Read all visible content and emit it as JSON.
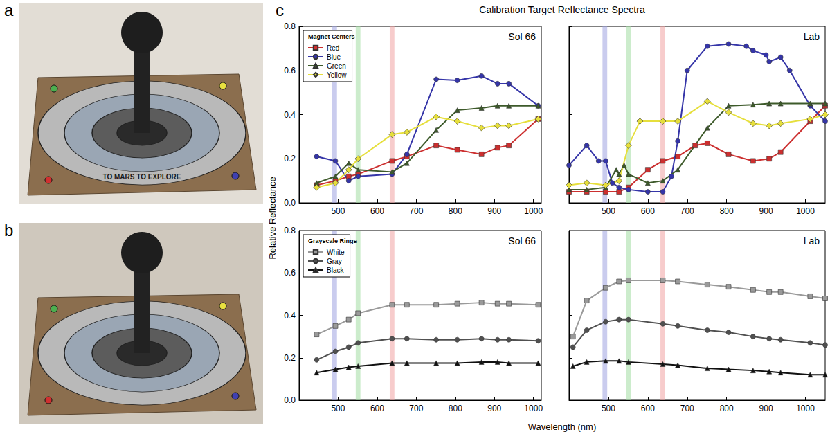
{
  "figure": {
    "panel_labels": [
      "a",
      "b",
      "c"
    ],
    "title": "Calibration Target Reflectance Spectra",
    "xlabel": "Wavelength (nm)",
    "ylabel": "Relative Reflectance",
    "photo_text": "TO MARS TO EXPLORE"
  },
  "chart_data": [
    {
      "type": "line",
      "title": "Sol 66",
      "legend_title": "Magnet Centers",
      "legend": "upper left",
      "grid": false,
      "xlim": [
        400,
        1020
      ],
      "xticks": [
        500,
        600,
        700,
        800,
        900,
        1000
      ],
      "ylim": [
        0,
        0.8
      ],
      "yticks": [
        {
          "value": 0,
          "label": "0.0"
        },
        0.2,
        0.4,
        0.6,
        0.8
      ],
      "bands": [
        {
          "from": 485,
          "to": 497,
          "color": "#9fa3e0"
        },
        {
          "from": 545,
          "to": 557,
          "color": "#a3dca3"
        },
        {
          "from": 632,
          "to": 644,
          "color": "#f0a3a3"
        }
      ],
      "x": [
        445,
        493,
        527,
        551,
        638,
        676,
        751,
        805,
        867,
        908,
        937,
        1012
      ],
      "series": [
        {
          "name": "Red",
          "color": "#cc2f2f",
          "marker": "square",
          "values": [
            0.08,
            0.1,
            0.12,
            0.13,
            0.19,
            0.21,
            0.26,
            0.24,
            0.22,
            0.25,
            0.26,
            0.38
          ]
        },
        {
          "name": "Blue",
          "color": "#3535a8",
          "marker": "circle",
          "values": [
            0.21,
            0.19,
            0.1,
            0.12,
            0.13,
            0.22,
            0.56,
            0.555,
            0.575,
            0.54,
            0.54,
            0.44
          ]
        },
        {
          "name": "Green",
          "color": "#3d5a2a",
          "marker": "triangle",
          "values": [
            0.09,
            0.12,
            0.18,
            0.15,
            0.14,
            0.18,
            0.33,
            0.42,
            0.43,
            0.44,
            0.44,
            0.44
          ]
        },
        {
          "name": "Yellow",
          "color": "#e6df3c",
          "marker": "diamond",
          "values": [
            0.07,
            0.09,
            0.15,
            0.2,
            0.31,
            0.32,
            0.39,
            0.37,
            0.34,
            0.35,
            0.35,
            0.38
          ]
        }
      ]
    },
    {
      "type": "line",
      "title": "Lab",
      "grid": false,
      "tick_labels": "x",
      "xlim": [
        400,
        1050
      ],
      "xticks": [
        500,
        600,
        700,
        800,
        900,
        1000
      ],
      "ylim": [
        0,
        0.8
      ],
      "yticks": [
        {
          "value": 0,
          "label": "0.0"
        },
        0.2,
        0.4,
        0.6,
        0.8
      ],
      "bands": [
        {
          "from": 485,
          "to": 497,
          "color": "#9fa3e0"
        },
        {
          "from": 545,
          "to": 557,
          "color": "#a3dca3"
        },
        {
          "from": 632,
          "to": 644,
          "color": "#f0a3a3"
        }
      ],
      "series": [
        {
          "name": "Red",
          "color": "#cc2f2f",
          "marker": "square",
          "x": [
            400,
            445,
            493,
            527,
            551,
            600,
            638,
            676,
            720,
            751,
            805,
            867,
            908,
            937,
            1012,
            1050
          ],
          "values": [
            0.05,
            0.05,
            0.05,
            0.05,
            0.07,
            0.15,
            0.19,
            0.21,
            0.26,
            0.27,
            0.22,
            0.19,
            0.2,
            0.23,
            0.37,
            0.44
          ]
        },
        {
          "name": "Blue",
          "color": "#3535a8",
          "marker": "circle",
          "x": [
            400,
            445,
            475,
            493,
            510,
            527,
            551,
            600,
            638,
            660,
            676,
            700,
            751,
            805,
            850,
            867,
            900,
            908,
            937,
            960,
            1012,
            1050
          ],
          "values": [
            0.17,
            0.26,
            0.19,
            0.19,
            0.09,
            0.07,
            0.06,
            0.05,
            0.05,
            0.12,
            0.28,
            0.6,
            0.71,
            0.72,
            0.71,
            0.69,
            0.67,
            0.64,
            0.66,
            0.6,
            0.44,
            0.37
          ]
        },
        {
          "name": "Green",
          "color": "#3d5a2a",
          "marker": "triangle",
          "x": [
            400,
            445,
            493,
            520,
            527,
            540,
            551,
            600,
            638,
            676,
            751,
            805,
            867,
            908,
            937,
            1012,
            1050
          ],
          "values": [
            0.06,
            0.06,
            0.07,
            0.15,
            0.13,
            0.17,
            0.13,
            0.09,
            0.1,
            0.15,
            0.34,
            0.44,
            0.445,
            0.45,
            0.45,
            0.45,
            0.45
          ]
        },
        {
          "name": "Yellow",
          "color": "#e6df3c",
          "marker": "diamond",
          "x": [
            400,
            445,
            493,
            527,
            551,
            580,
            638,
            676,
            751,
            805,
            867,
            908,
            937,
            1012,
            1050
          ],
          "values": [
            0.08,
            0.09,
            0.08,
            0.1,
            0.26,
            0.37,
            0.37,
            0.37,
            0.46,
            0.41,
            0.36,
            0.35,
            0.36,
            0.38,
            0.4
          ]
        }
      ]
    },
    {
      "type": "line",
      "title": "Sol 66",
      "legend_title": "Grayscale Rings",
      "legend": "upper left",
      "grid": false,
      "xlim": [
        400,
        1020
      ],
      "xticks": [
        500,
        600,
        700,
        800,
        900,
        1000
      ],
      "ylim": [
        0,
        0.8
      ],
      "yticks": [
        {
          "value": 0,
          "label": "0.0"
        },
        0.2,
        0.4,
        0.6,
        0.8
      ],
      "bands": [
        {
          "from": 485,
          "to": 497,
          "color": "#9fa3e0"
        },
        {
          "from": 545,
          "to": 557,
          "color": "#a3dca3"
        },
        {
          "from": 632,
          "to": 644,
          "color": "#f0a3a3"
        }
      ],
      "x": [
        445,
        493,
        527,
        551,
        638,
        676,
        751,
        805,
        867,
        908,
        937,
        1012
      ],
      "series": [
        {
          "name": "White",
          "color": "#9a9a9a",
          "marker": "square",
          "values": [
            0.31,
            0.35,
            0.38,
            0.41,
            0.45,
            0.45,
            0.45,
            0.455,
            0.46,
            0.455,
            0.455,
            0.45
          ]
        },
        {
          "name": "Gray",
          "color": "#505050",
          "marker": "circle",
          "values": [
            0.19,
            0.23,
            0.25,
            0.27,
            0.29,
            0.29,
            0.285,
            0.285,
            0.29,
            0.285,
            0.285,
            0.28
          ]
        },
        {
          "name": "Black",
          "color": "#111111",
          "marker": "triangle",
          "values": [
            0.13,
            0.145,
            0.155,
            0.16,
            0.175,
            0.175,
            0.175,
            0.175,
            0.18,
            0.18,
            0.175,
            0.175
          ]
        }
      ]
    },
    {
      "type": "line",
      "title": "Lab",
      "grid": false,
      "tick_labels": "x",
      "xlim": [
        400,
        1050
      ],
      "xticks": [
        500,
        600,
        700,
        800,
        900,
        1000
      ],
      "ylim": [
        0,
        0.8
      ],
      "yticks": [
        {
          "value": 0,
          "label": "0.0"
        },
        0.2,
        0.4,
        0.6,
        0.8
      ],
      "bands": [
        {
          "from": 485,
          "to": 497,
          "color": "#9fa3e0"
        },
        {
          "from": 545,
          "to": 557,
          "color": "#a3dca3"
        },
        {
          "from": 632,
          "to": 644,
          "color": "#f0a3a3"
        }
      ],
      "series": [
        {
          "name": "White",
          "color": "#9a9a9a",
          "marker": "square",
          "x": [
            410,
            445,
            493,
            527,
            551,
            638,
            676,
            751,
            805,
            867,
            908,
            937,
            1012,
            1050
          ],
          "values": [
            0.3,
            0.47,
            0.53,
            0.56,
            0.565,
            0.565,
            0.56,
            0.545,
            0.535,
            0.52,
            0.51,
            0.51,
            0.49,
            0.48
          ]
        },
        {
          "name": "Gray",
          "color": "#505050",
          "marker": "circle",
          "x": [
            410,
            445,
            493,
            527,
            551,
            638,
            676,
            751,
            805,
            867,
            908,
            937,
            1012,
            1050
          ],
          "values": [
            0.25,
            0.33,
            0.37,
            0.38,
            0.38,
            0.36,
            0.35,
            0.33,
            0.32,
            0.3,
            0.29,
            0.285,
            0.27,
            0.26
          ]
        },
        {
          "name": "Black",
          "color": "#111111",
          "marker": "triangle",
          "x": [
            410,
            445,
            493,
            527,
            551,
            638,
            676,
            751,
            805,
            867,
            908,
            937,
            1012,
            1050
          ],
          "values": [
            0.16,
            0.18,
            0.185,
            0.185,
            0.18,
            0.17,
            0.165,
            0.15,
            0.145,
            0.14,
            0.135,
            0.13,
            0.12,
            0.12
          ]
        }
      ]
    }
  ]
}
